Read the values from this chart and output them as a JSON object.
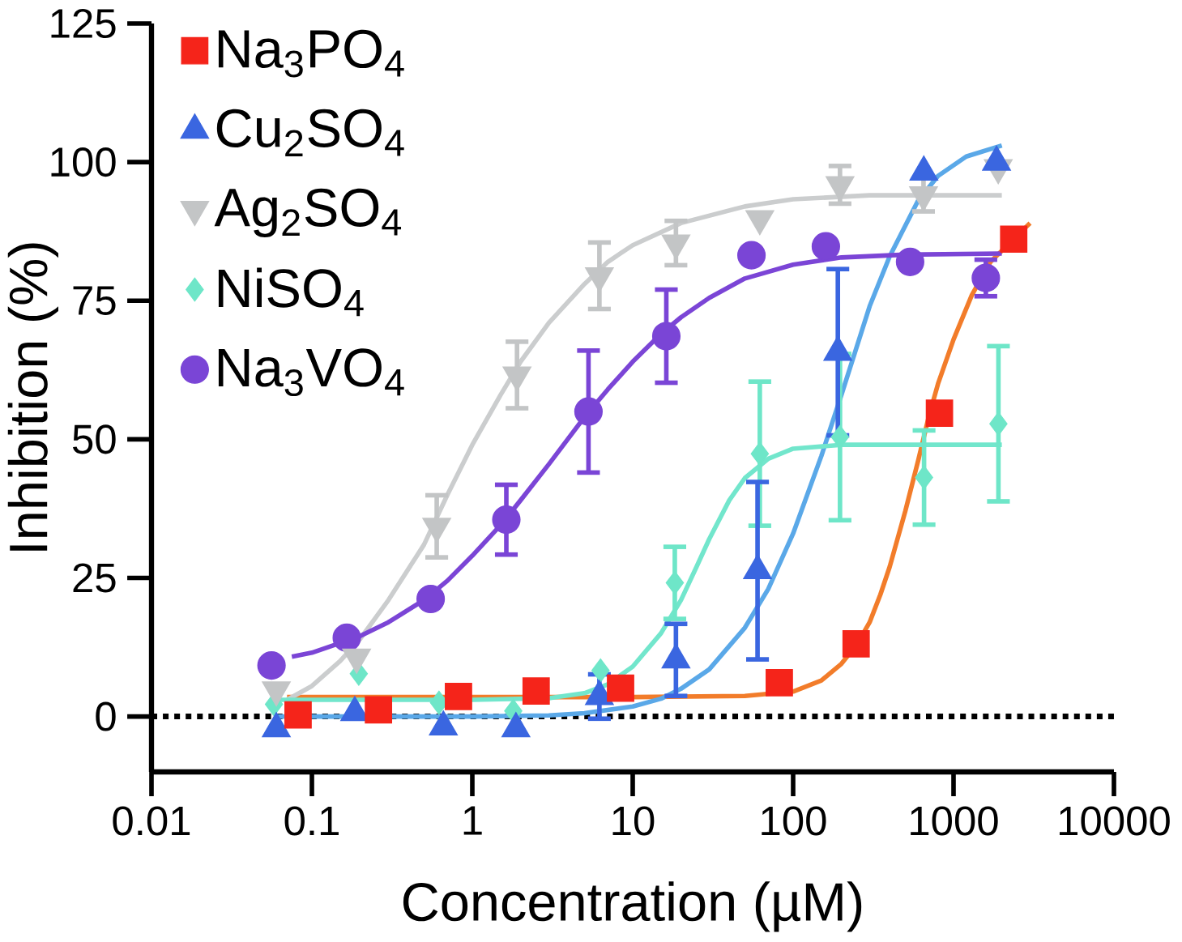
{
  "chart_data": {
    "type": "scatter",
    "xlabel": "Concentration (µM)",
    "ylabel": "Inhibition (%)",
    "log": "x",
    "xlim": [
      0.01,
      10000
    ],
    "xticks": [
      0.01,
      0.1,
      1,
      10,
      100,
      1000,
      10000
    ],
    "ylim": [
      -10,
      125
    ],
    "yticks": [
      0,
      25,
      50,
      75,
      100,
      125
    ],
    "legend": "top left",
    "ref_lines": [
      {
        "axis": "y",
        "value": 0,
        "color": "#000000",
        "line_style": "dotted"
      }
    ],
    "series": [
      {
        "type": "line",
        "color": "#f27c2a",
        "marker": "none",
        "x": [
          0.07,
          1,
          10,
          50,
          100,
          150,
          200,
          250,
          300,
          350,
          400,
          500,
          600,
          700,
          800,
          1000,
          1300,
          1700,
          2200,
          3000
        ],
        "values": [
          3.5,
          3.5,
          3.5,
          3.7,
          4.5,
          6.5,
          9.5,
          13,
          17,
          22,
          27,
          37,
          46,
          54,
          60,
          68,
          76,
          82,
          null,
          89
        ]
      },
      {
        "type": "line",
        "color": "#5aa8e8",
        "marker": "none",
        "x": [
          0.06,
          1,
          3,
          5,
          10,
          15,
          20,
          30,
          50,
          70,
          100,
          150,
          200,
          300,
          400,
          600,
          800,
          1200,
          2000
        ],
        "values": [
          0,
          0,
          0.2,
          0.6,
          1.8,
          3.2,
          5,
          8.5,
          16,
          23,
          33,
          47,
          58,
          74,
          83,
          93,
          97.5,
          101,
          103
        ]
      },
      {
        "type": "line",
        "color": "#cbcdce",
        "marker": "none",
        "x": [
          0.07,
          0.1,
          0.15,
          0.2,
          0.3,
          0.5,
          0.7,
          1,
          1.5,
          2,
          3,
          5,
          7,
          10,
          20,
          50,
          100,
          300,
          2000
        ],
        "values": [
          3,
          5.5,
          10,
          14,
          21,
          31,
          40,
          49,
          58,
          64,
          71,
          78,
          82,
          85,
          89,
          92,
          93.3,
          94,
          94
        ]
      },
      {
        "type": "line",
        "color": "#72e6cc",
        "marker": "none",
        "x": [
          0.06,
          1,
          3,
          5,
          7,
          10,
          15,
          20,
          25,
          30,
          40,
          50,
          70,
          100,
          200,
          2000
        ],
        "values": [
          3,
          3,
          3.3,
          4.2,
          5.8,
          9,
          15,
          21,
          27,
          32,
          39,
          43,
          46.5,
          48.3,
          49,
          49
        ]
      },
      {
        "type": "line",
        "color": "#7b45d6",
        "marker": "none",
        "x": [
          0.075,
          0.1,
          0.2,
          0.3,
          0.5,
          0.7,
          1,
          1.5,
          2,
          3,
          5,
          7,
          10,
          15,
          20,
          30,
          50,
          100,
          200,
          500,
          2000
        ],
        "values": [
          10.8,
          11.5,
          14.5,
          17,
          21,
          24.5,
          29,
          34.5,
          39,
          45.5,
          54,
          59,
          64,
          69,
          72,
          75.5,
          79,
          81.5,
          82.8,
          83.3,
          83.5
        ]
      },
      {
        "name": "Na$_{3}$PO$_{4}$",
        "color": "#f5241a",
        "marker": "square",
        "x": [
          0.082,
          0.26,
          0.82,
          2.5,
          8.4,
          82,
          247,
          817,
          2372
        ],
        "values": [
          0.3,
          1.2,
          3.6,
          4.6,
          5.1,
          6.1,
          13.1,
          54.7,
          86.1
        ]
      },
      {
        "name": "Cu$_{2}$SO$_{4}$",
        "color": "#3a66e0",
        "marker": "triangle",
        "x": [
          0.06,
          0.185,
          0.66,
          1.87,
          6.2,
          18.6,
          60,
          190,
          653,
          1854
        ],
        "values": [
          -2.2,
          0.7,
          -1.9,
          -2.2,
          3.6,
          10.2,
          26.3,
          65.7,
          98.2,
          100
        ],
        "errors": [
          null,
          null,
          null,
          null,
          4,
          6.5,
          16,
          15,
          null,
          null
        ]
      },
      {
        "name": "Ag$_{2}$SO$_{4}$",
        "color": "#c3c5c6",
        "marker": "triangle-down",
        "x": [
          0.06,
          0.19,
          0.6,
          1.9,
          6.2,
          18.6,
          62,
          196,
          650,
          1900
        ],
        "values": [
          4.8,
          10.7,
          34.3,
          61.6,
          79.5,
          85.4,
          89.8,
          95.9,
          94.1,
          99
        ],
        "errors": [
          null,
          null,
          5.6,
          6,
          6,
          4,
          null,
          3.4,
          3,
          null
        ]
      },
      {
        "name": "NiSO$_{4}$",
        "color": "#6ee6c8",
        "marker": "diamond",
        "x": [
          0.058,
          0.196,
          0.62,
          1.8,
          6.3,
          18.3,
          62,
          196,
          655,
          1905
        ],
        "values": [
          2.2,
          7.7,
          2.5,
          1.0,
          8.3,
          24.1,
          47.4,
          50.4,
          43.1,
          52.8
        ],
        "errors": [
          null,
          null,
          null,
          null,
          null,
          6.5,
          13,
          15,
          8.5,
          14
        ]
      },
      {
        "name": "Na$_{3}$VO$_{4}$",
        "color": "#7a45d6",
        "marker": "circle",
        "x": [
          0.056,
          0.165,
          0.55,
          1.63,
          5.3,
          16.2,
          55,
          160,
          536,
          1590
        ],
        "values": [
          9.2,
          14.2,
          21.2,
          35.5,
          55.0,
          68.6,
          83.2,
          84.8,
          82.0,
          79.1
        ],
        "errors": [
          null,
          null,
          null,
          6.3,
          11,
          8.4,
          null,
          null,
          null,
          3.3
        ]
      }
    ]
  }
}
